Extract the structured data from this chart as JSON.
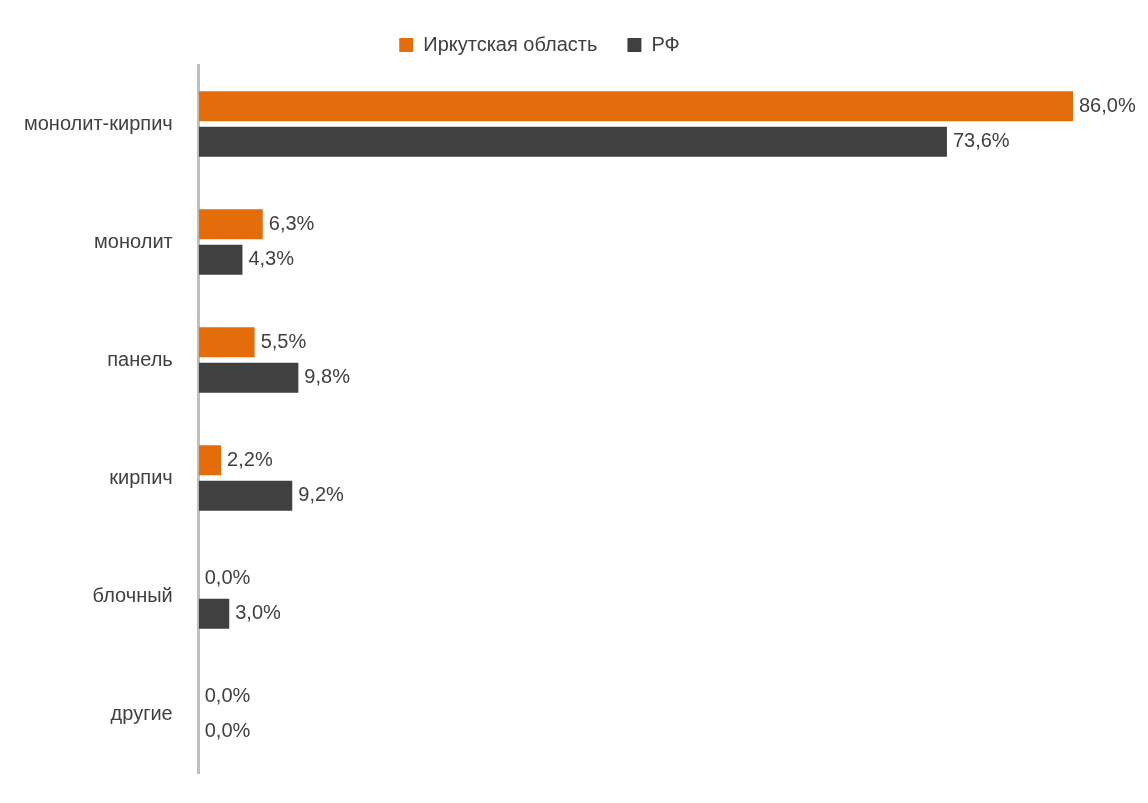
{
  "chart_data": {
    "type": "bar",
    "orientation": "horizontal",
    "legend": "top",
    "categories": [
      "монолит-кирпич",
      "монолит",
      "панель",
      "кирпич",
      "блочный",
      "другие"
    ],
    "series": [
      {
        "name": "Иркутская область",
        "color": "#e46c0a",
        "values": [
          86.0,
          6.3,
          5.5,
          2.2,
          0.0,
          0.0
        ],
        "value_labels": [
          "86,0%",
          "6,3%",
          "5,5%",
          "2,2%",
          "0,0%",
          "0,0%"
        ]
      },
      {
        "name": "РФ",
        "color": "#404040",
        "values": [
          73.6,
          4.3,
          9.8,
          9.2,
          3.0,
          0.0
        ],
        "value_labels": [
          "73,6%",
          "4,3%",
          "9,8%",
          "9,2%",
          "3,0%",
          "0,0%"
        ]
      }
    ]
  }
}
